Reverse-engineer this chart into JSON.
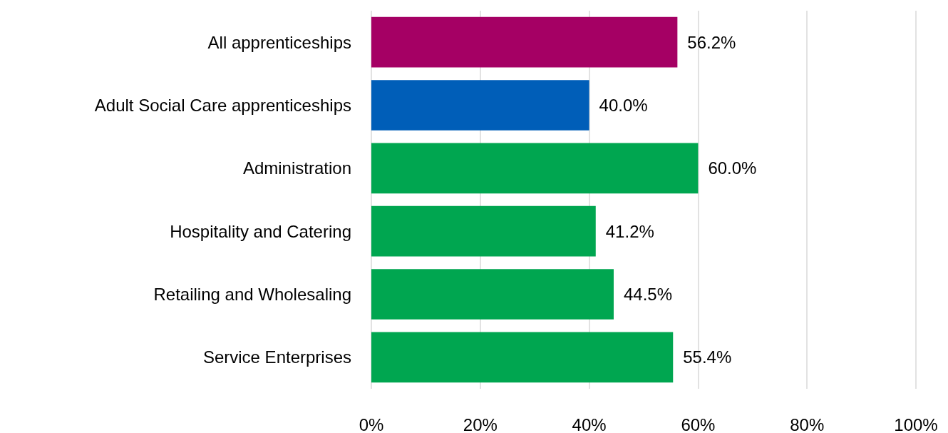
{
  "chart_data": {
    "type": "bar",
    "orientation": "horizontal",
    "categories": [
      "All apprenticeships",
      "Adult Social Care apprenticeships",
      "Administration",
      "Hospitality and Catering",
      "Retailing and Wholesaling",
      "Service Enterprises"
    ],
    "values": [
      56.2,
      40.0,
      60.0,
      41.2,
      44.5,
      55.4
    ],
    "colors": [
      "#a50064",
      "#005eb8",
      "#00a650",
      "#00a650",
      "#00a650",
      "#00a650"
    ],
    "value_labels": [
      "56.2%",
      "40.0%",
      "60.0%",
      "41.2%",
      "44.5%",
      "55.4%"
    ],
    "xlim": [
      0,
      100
    ],
    "xticks": [
      {
        "value": 0,
        "label": "0%"
      },
      {
        "value": 20,
        "label": "20%"
      },
      {
        "value": 40,
        "label": "40%"
      },
      {
        "value": 60,
        "label": "60%"
      },
      {
        "value": 80,
        "label": "80%"
      },
      {
        "value": 100,
        "label": "100%"
      }
    ],
    "grid": "x"
  }
}
